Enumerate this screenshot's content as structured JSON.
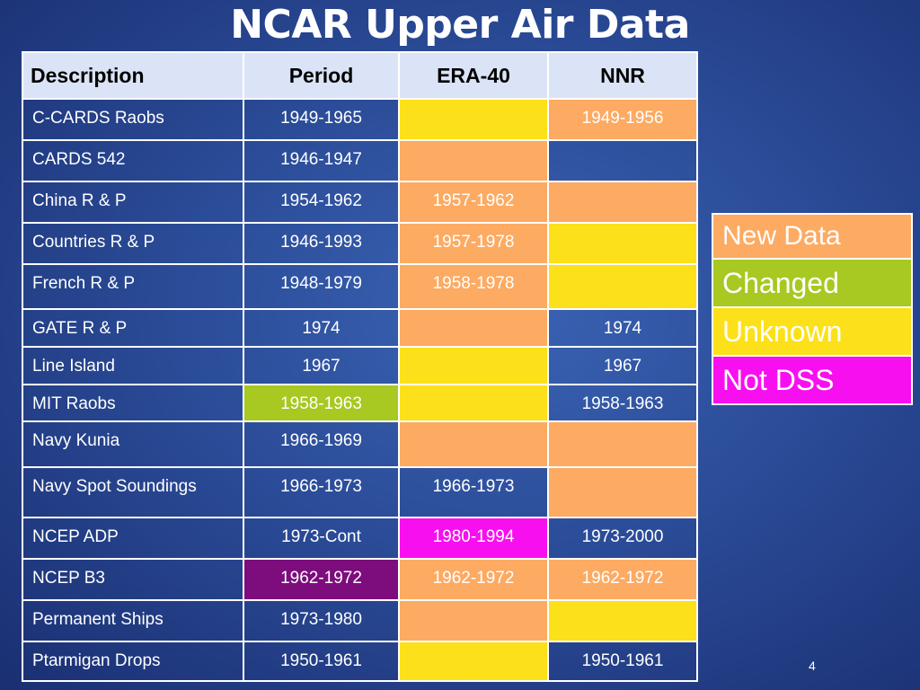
{
  "title": "NCAR Upper Air Data",
  "table": {
    "headers": [
      "Description",
      "Period",
      "ERA-40",
      "NNR"
    ],
    "rows": [
      {
        "desc": "C-CARDS Raobs",
        "period": "1949-1965",
        "era40": "",
        "nnr": "1949-1956",
        "colors": [
          "plain",
          "plain",
          "unknown",
          "new"
        ]
      },
      {
        "desc": "CARDS 542",
        "period": "1946-1947",
        "era40": "",
        "nnr": "",
        "colors": [
          "plain",
          "plain",
          "new",
          "plain"
        ]
      },
      {
        "desc": "China R & P",
        "period": "1954-1962",
        "era40": "1957-1962",
        "nnr": "",
        "colors": [
          "plain",
          "plain",
          "new",
          "new"
        ]
      },
      {
        "desc": "Countries R & P",
        "period": "1946-1993",
        "era40": "1957-1978",
        "nnr": "",
        "colors": [
          "plain",
          "plain",
          "new",
          "unknown"
        ]
      },
      {
        "desc": "French R & P",
        "period": "1948-1979",
        "era40": "1958-1978",
        "nnr": "",
        "colors": [
          "plain",
          "plain",
          "new",
          "unknown"
        ]
      },
      {
        "desc": "GATE R & P",
        "period": "1974",
        "era40": "",
        "nnr": "1974",
        "colors": [
          "plain",
          "plain",
          "new",
          "plain"
        ]
      },
      {
        "desc": "Line Island",
        "period": "1967",
        "era40": "",
        "nnr": "1967",
        "colors": [
          "plain",
          "plain",
          "unknown",
          "plain"
        ]
      },
      {
        "desc": "MIT Raobs",
        "period": "1958-1963",
        "era40": "",
        "nnr": "1958-1963",
        "colors": [
          "plain",
          "changed",
          "unknown",
          "plain"
        ]
      },
      {
        "desc": "Navy Kunia",
        "period": "1966-1969",
        "era40": "",
        "nnr": "",
        "colors": [
          "plain",
          "plain",
          "new",
          "new"
        ]
      },
      {
        "desc": "Navy Spot Soundings",
        "period": "1966-1973",
        "era40": "1966-1973",
        "nnr": "",
        "colors": [
          "plain",
          "plain",
          "plain",
          "new"
        ]
      },
      {
        "desc": "NCEP ADP",
        "period": "1973-Cont",
        "era40": "1980-1994",
        "nnr": "1973-2000",
        "colors": [
          "plain",
          "plain",
          "notdss",
          "plain"
        ]
      },
      {
        "desc": "NCEP B3",
        "period": "1962-1972",
        "era40": "1962-1972",
        "nnr": "1962-1972",
        "colors": [
          "plain",
          "purple",
          "new",
          "new"
        ]
      },
      {
        "desc": "Permanent Ships",
        "period": "1973-1980",
        "era40": "",
        "nnr": "",
        "colors": [
          "plain",
          "plain",
          "new",
          "unknown"
        ]
      },
      {
        "desc": "Ptarmigan Drops",
        "period": "1950-1961",
        "era40": "",
        "nnr": "1950-1961",
        "colors": [
          "plain",
          "plain",
          "unknown",
          "plain"
        ]
      }
    ]
  },
  "legend": [
    {
      "label": "New Data",
      "color": "#fdaa62"
    },
    {
      "label": "Changed",
      "color": "#a8c822"
    },
    {
      "label": "Unknown",
      "color": "#fce01a"
    },
    {
      "label": "Not DSS",
      "color": "#f80ff0"
    }
  ],
  "colors": {
    "new": "#fdaa62",
    "changed": "#a8c822",
    "unknown": "#fce01a",
    "notdss": "#f80ff0",
    "purple": "#7d0c7d"
  },
  "page_number": "4"
}
